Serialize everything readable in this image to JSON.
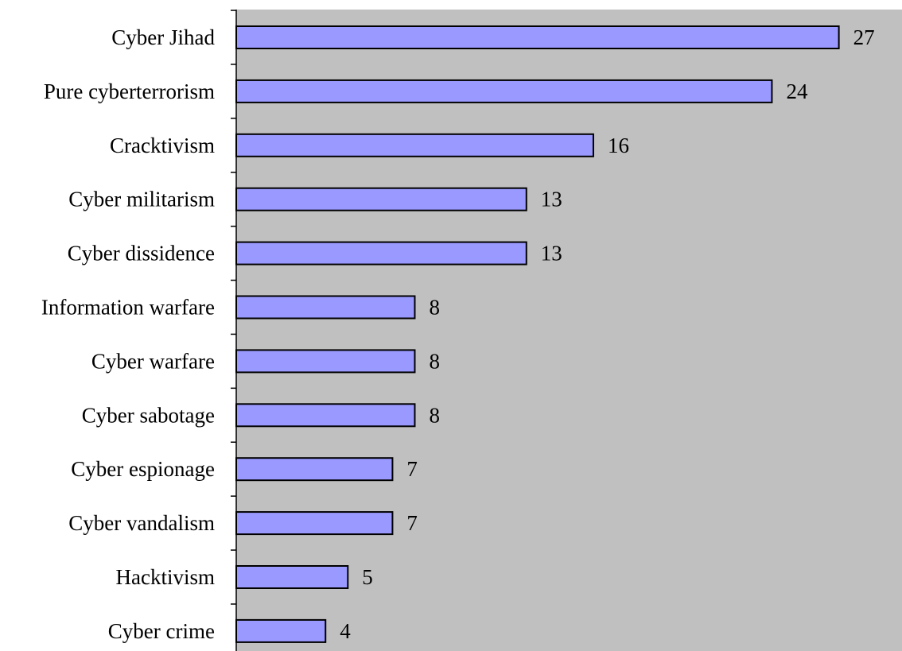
{
  "chart_data": {
    "type": "bar",
    "orientation": "horizontal",
    "categories": [
      "Cyber Jihad",
      "Pure cyberterrorism",
      "Cracktivism",
      "Cyber militarism",
      "Cyber dissidence",
      "Information warfare",
      "Cyber warfare",
      "Cyber sabotage",
      "Cyber espionage",
      "Cyber vandalism",
      "Hacktivism",
      "Cyber crime"
    ],
    "values": [
      27,
      24,
      16,
      13,
      13,
      8,
      8,
      8,
      7,
      7,
      5,
      4
    ],
    "value_labels": [
      "27",
      "24",
      "16",
      "13",
      "13",
      "8",
      "8",
      "8",
      "7",
      "7",
      "5",
      "4"
    ],
    "title": "",
    "xlabel": "",
    "ylabel": "",
    "xlim": [
      0,
      30
    ],
    "grid": false,
    "legend": "none",
    "colors": {
      "bar_fill": "#9999ff",
      "bar_stroke": "#000000",
      "plot_background": "#c0c0c0",
      "axis": "#000000"
    }
  }
}
